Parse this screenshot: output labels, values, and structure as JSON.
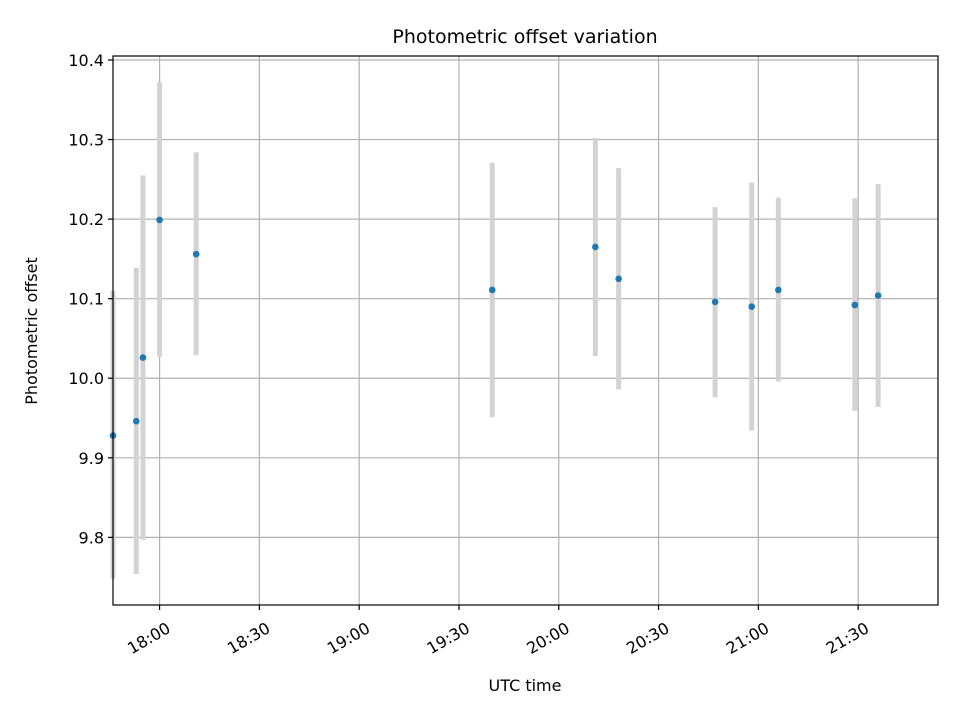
{
  "chart_data": {
    "type": "scatter",
    "title": "Photometric offset variation",
    "xlabel": "UTC time",
    "ylabel": "Photometric offset",
    "x_axis_type": "time",
    "xlim": [
      "17:46",
      "21:54"
    ],
    "ylim": [
      9.715,
      10.405
    ],
    "grid": true,
    "x_ticks": [
      "18:00",
      "18:30",
      "19:00",
      "19:30",
      "20:00",
      "20:30",
      "21:00",
      "21:30"
    ],
    "y_ticks": [
      9.8,
      9.9,
      10.0,
      10.1,
      10.2,
      10.3,
      10.4
    ],
    "y_tick_labels": [
      "9.8",
      "9.9",
      "10.0",
      "10.1",
      "10.2",
      "10.3",
      "10.4"
    ],
    "points": [
      {
        "x": "17:46",
        "y": 9.928,
        "err_low": 9.748,
        "err_high": 10.11
      },
      {
        "x": "17:53",
        "y": 9.946,
        "err_low": 9.754,
        "err_high": 10.139
      },
      {
        "x": "17:55",
        "y": 10.026,
        "err_low": 9.797,
        "err_high": 10.255
      },
      {
        "x": "18:00",
        "y": 10.199,
        "err_low": 10.027,
        "err_high": 10.372
      },
      {
        "x": "18:11",
        "y": 10.156,
        "err_low": 10.029,
        "err_high": 10.284
      },
      {
        "x": "19:40",
        "y": 10.111,
        "err_low": 9.951,
        "err_high": 10.271
      },
      {
        "x": "20:11",
        "y": 10.165,
        "err_low": 10.028,
        "err_high": 10.302
      },
      {
        "x": "20:18",
        "y": 10.125,
        "err_low": 9.986,
        "err_high": 10.264
      },
      {
        "x": "20:47",
        "y": 10.096,
        "err_low": 9.976,
        "err_high": 10.215
      },
      {
        "x": "20:58",
        "y": 10.09,
        "err_low": 9.934,
        "err_high": 10.246
      },
      {
        "x": "21:06",
        "y": 10.111,
        "err_low": 9.996,
        "err_high": 10.227
      },
      {
        "x": "21:29",
        "y": 10.092,
        "err_low": 9.959,
        "err_high": 10.226
      },
      {
        "x": "21:36",
        "y": 10.104,
        "err_low": 9.964,
        "err_high": 10.244
      }
    ],
    "colors": {
      "point": "#1f77b4",
      "errorbar": "#d3d3d3",
      "grid": "#b0b0b0",
      "axes": "#000000"
    }
  }
}
